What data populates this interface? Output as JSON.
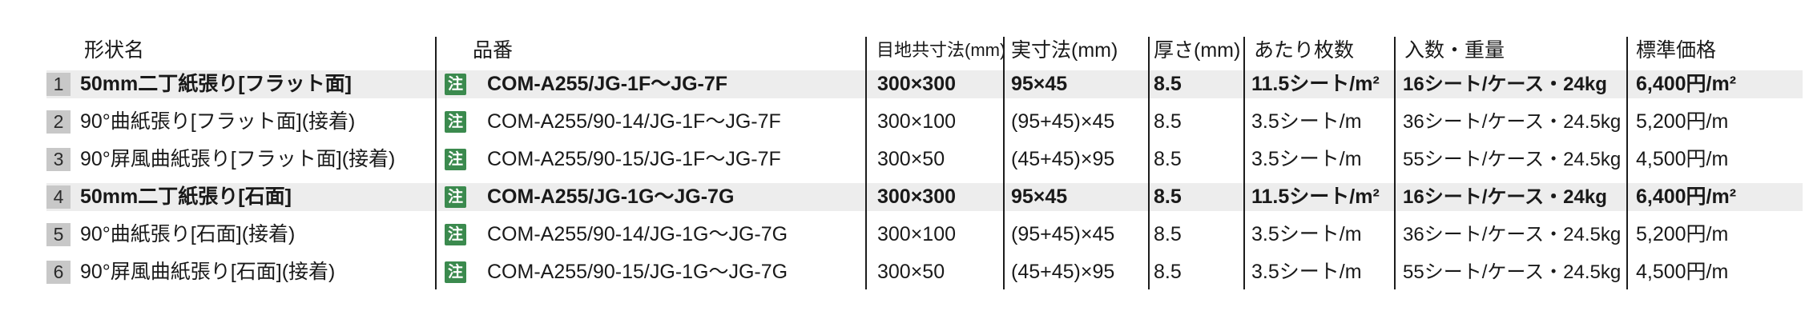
{
  "table": {
    "note_badge": "注",
    "columns": {
      "shape": "形状名",
      "product": "品番",
      "joint": "目地共寸法(mm)",
      "actual": "実寸法(mm)",
      "thickness": "厚さ(mm)",
      "per": "あたり枚数",
      "qty": "入数・重量",
      "price": "標準価格"
    },
    "rows": [
      {
        "num": "1",
        "shape": "50mm二丁紙張り[フラット面]",
        "product": "COM-A255/JG-1F～JG-7F",
        "joint": "300×300",
        "actual": "95×45",
        "thickness": "8.5",
        "per": "11.5シート/m²",
        "qty": "16シート/ケース・24kg",
        "price": "6,400円/m²"
      },
      {
        "num": "2",
        "shape": "90°曲紙張り[フラット面](接着)",
        "product": "COM-A255/90-14/JG-1F～JG-7F",
        "joint": "300×100",
        "actual": "(95+45)×45",
        "thickness": "8.5",
        "per": "3.5シート/m",
        "qty": "36シート/ケース・24.5kg",
        "price": "5,200円/m"
      },
      {
        "num": "3",
        "shape": "90°屏風曲紙張り[フラット面](接着)",
        "product": "COM-A255/90-15/JG-1F～JG-7F",
        "joint": "300×50",
        "actual": "(45+45)×95",
        "thickness": "8.5",
        "per": "3.5シート/m",
        "qty": "55シート/ケース・24.5kg",
        "price": "4,500円/m"
      },
      {
        "num": "4",
        "shape": "50mm二丁紙張り[石面]",
        "product": "COM-A255/JG-1G～JG-7G",
        "joint": "300×300",
        "actual": "95×45",
        "thickness": "8.5",
        "per": "11.5シート/m²",
        "qty": "16シート/ケース・24kg",
        "price": "6,400円/m²"
      },
      {
        "num": "5",
        "shape": "90°曲紙張り[石面](接着)",
        "product": "COM-A255/90-14/JG-1G～JG-7G",
        "joint": "300×100",
        "actual": "(95+45)×45",
        "thickness": "8.5",
        "per": "3.5シート/m",
        "qty": "36シート/ケース・24.5kg",
        "price": "5,200円/m"
      },
      {
        "num": "6",
        "shape": "90°屏風曲紙張り[石面](接着)",
        "product": "COM-A255/90-15/JG-1G～JG-7G",
        "joint": "300×50",
        "actual": "(45+45)×95",
        "thickness": "8.5",
        "per": "3.5シート/m",
        "qty": "55シート/ケース・24.5kg",
        "price": "4,500円/m"
      }
    ]
  },
  "colors": {
    "note_green": "#3b8a4e",
    "row_highlight": "#ededed",
    "badge_gray": "#c8c8c8",
    "text": "#191919"
  }
}
